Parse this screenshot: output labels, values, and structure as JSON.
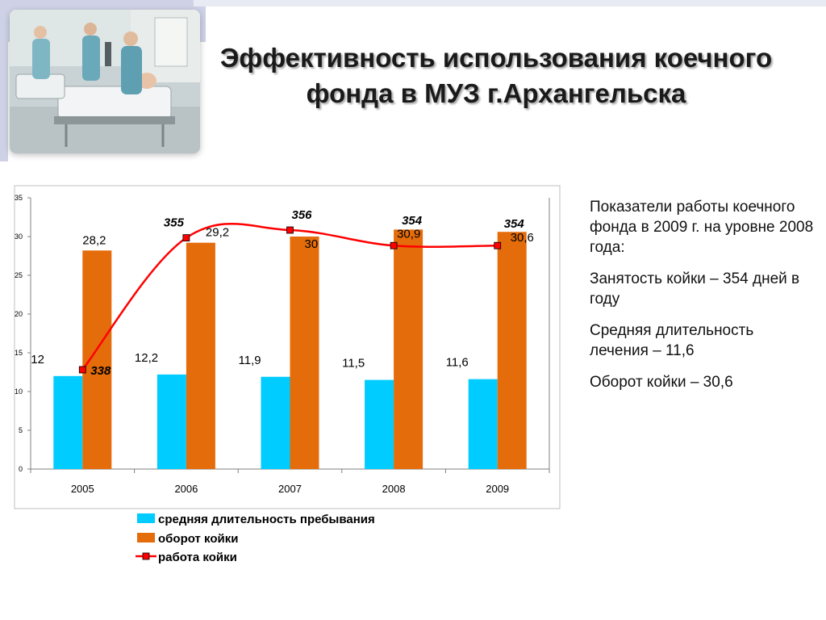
{
  "title": {
    "line1": "Эффективность использования коечного",
    "line2": "фонда в МУЗ г.Архангельска"
  },
  "side_panel": {
    "items": [
      "Показатели  работы коечного фонда в 2009 г. на уровне 2008 года:",
      "Занятость койки – 354 дней в году",
      "Средняя длительность лечения – 11,6",
      "Оборот койки – 30,6"
    ]
  },
  "colors": {
    "stay": "#00ccff",
    "turnover": "#e46c0a",
    "work": "#ff0000",
    "deco": "#cfd2e6"
  },
  "chart_data": {
    "type": "bar",
    "categories": [
      "2005",
      "2006",
      "2007",
      "2008",
      "2009"
    ],
    "ylim": [
      0,
      35
    ],
    "yticks": [
      "0",
      "5",
      "10",
      "15",
      "20",
      "25",
      "30",
      "35"
    ],
    "grid": false,
    "legend_position": "bottom",
    "series": [
      {
        "name": "средняя длительность пребывания",
        "kind": "bar",
        "values": [
          12,
          12.2,
          11.9,
          11.5,
          11.6
        ],
        "labels": [
          "12",
          "12,2",
          "11,9",
          "11,5",
          "11,6"
        ]
      },
      {
        "name": "оборот койки",
        "kind": "bar",
        "values": [
          28.2,
          29.2,
          30,
          30.9,
          30.6
        ],
        "labels": [
          "28,2",
          "29,2",
          "30",
          "30,9",
          "30,6"
        ]
      },
      {
        "name": "работа койки",
        "kind": "line",
        "values": [
          338,
          355,
          356,
          354,
          354
        ],
        "labels": [
          "338",
          "355",
          "356",
          "354",
          "354"
        ]
      }
    ]
  }
}
